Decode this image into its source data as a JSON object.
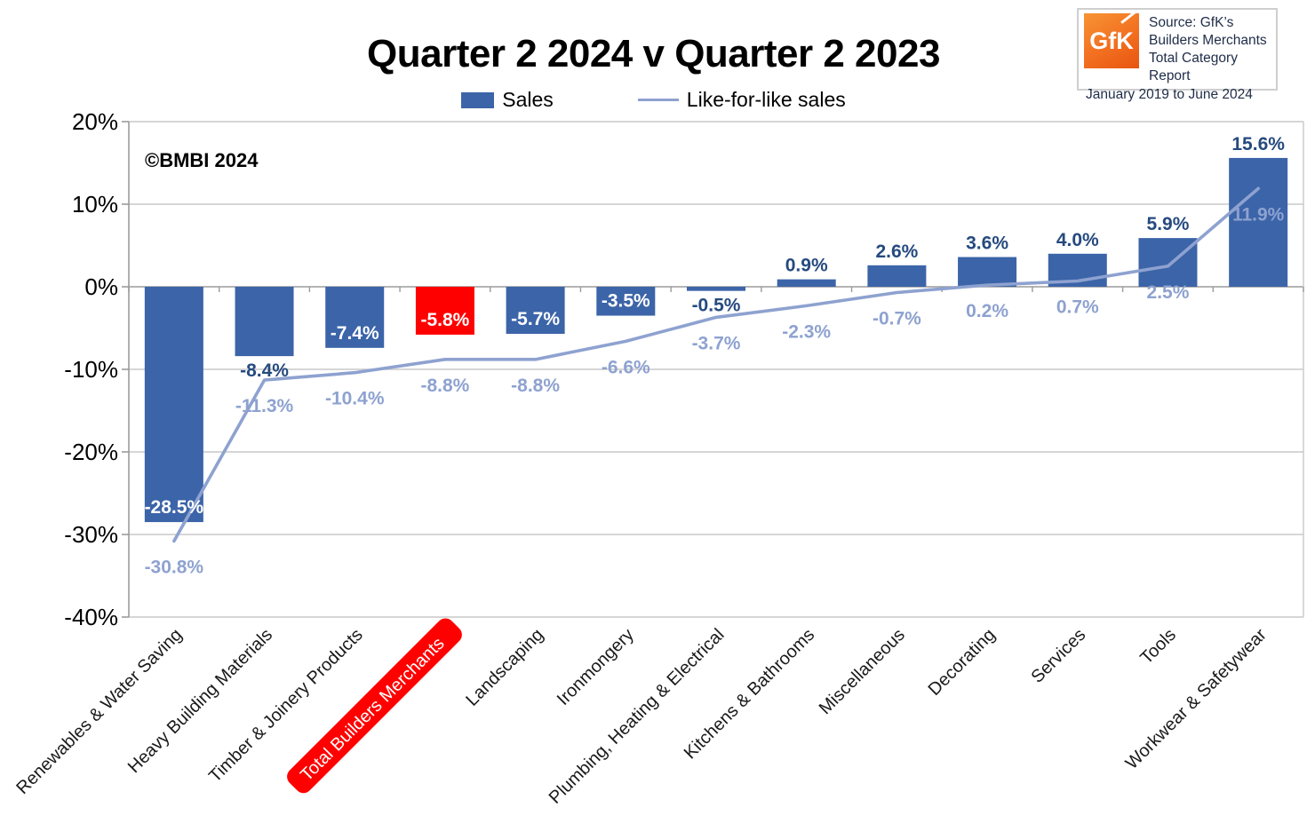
{
  "source_box": {
    "logo": "GfK",
    "lines": [
      "Source: GfK’s",
      "Builders Merchants",
      "Total Category Report"
    ],
    "period": "January 2019 to June 2024"
  },
  "colors": {
    "bar": "#3C64A8",
    "bar_highlight": "#FF0000",
    "line": "#8EA2D0",
    "bar_label_dark": "#254A7F",
    "bar_label_inside": "#FFFFFF",
    "line_label": "#8EA2D0",
    "grid": "#C9C9C9",
    "axis": "#9B9B9B",
    "xlabel_text": "#1A1A1A"
  },
  "chart_data": {
    "type": "bar",
    "title": "Quarter 2 2024 v Quarter 2 2023",
    "annotations": [
      "©BMBI 2024"
    ],
    "categories": [
      "Renewables & Water Saving",
      "Heavy Building Materials",
      "Timber & Joinery Products",
      "Total Builders Merchants",
      "Landscaping",
      "Ironmongery",
      "Plumbing, Heating & Electrical",
      "Kitchens & Bathrooms",
      "Miscellaneous",
      "Decorating",
      "Services",
      "Tools",
      "Workwear & Safetywear"
    ],
    "series": [
      {
        "name": "Sales",
        "type": "bar",
        "values": [
          -28.5,
          -8.4,
          -7.4,
          -5.8,
          -5.7,
          -3.5,
          -0.5,
          0.9,
          2.6,
          3.6,
          4.0,
          5.9,
          15.6
        ],
        "labels": [
          "-28.5%",
          "-8.4%",
          "-7.4%",
          "-5.8%",
          "-5.7%",
          "-3.5%",
          "-0.5%",
          "0.9%",
          "2.6%",
          "3.6%",
          "4.0%",
          "5.9%",
          "15.6%"
        ],
        "label_positions": [
          "inside",
          "below",
          "inside",
          "inside",
          "inside",
          "inside",
          "below",
          "above",
          "above",
          "above",
          "above",
          "above",
          "above"
        ]
      },
      {
        "name": "Like-for-like sales",
        "type": "line",
        "values": [
          -30.8,
          -11.3,
          -10.4,
          -8.8,
          -8.8,
          -6.6,
          -3.7,
          -2.3,
          -0.7,
          0.2,
          0.7,
          2.5,
          11.9
        ],
        "labels": [
          "-30.8%",
          "-11.3%",
          "-10.4%",
          "-8.8%",
          "-8.8%",
          "-6.6%",
          "-3.7%",
          "-2.3%",
          "-0.7%",
          "0.2%",
          "0.7%",
          "2.5%",
          "11.9%"
        ]
      }
    ],
    "highlight_index": 3,
    "highlight_category": "Total Builders Merchants",
    "ylim": [
      -40,
      20
    ],
    "ytick_step": 10,
    "ytick_labels": [
      "20%",
      "10%",
      "0%",
      "-10%",
      "-20%",
      "-30%",
      "-40%"
    ],
    "grid": true,
    "legend_position": "top"
  }
}
